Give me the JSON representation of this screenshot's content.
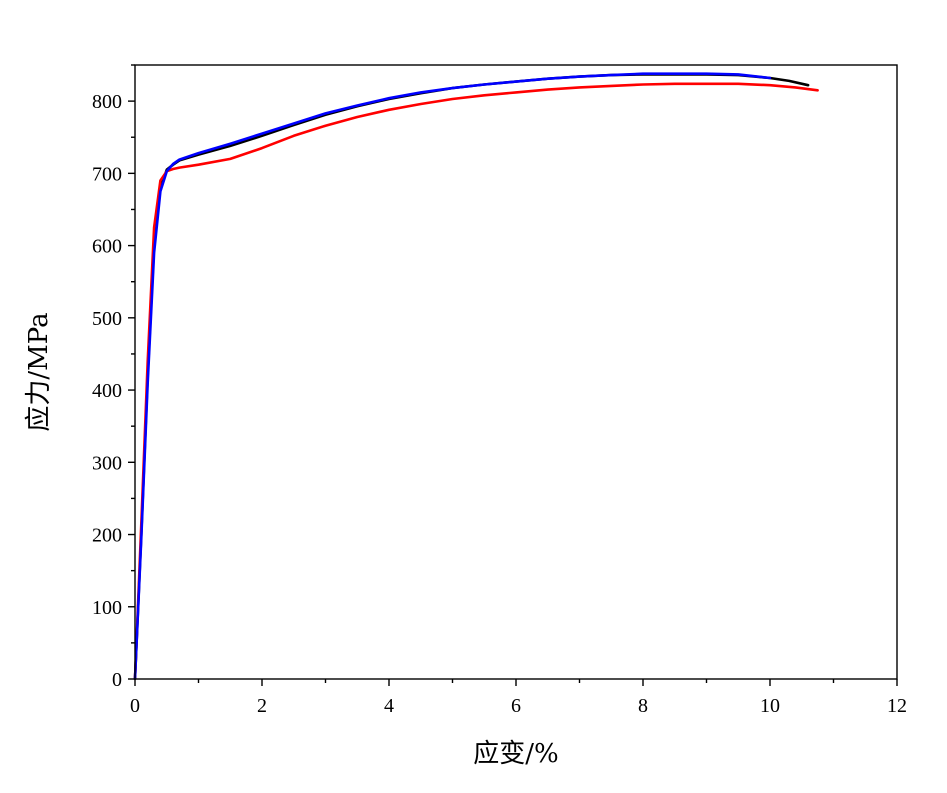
{
  "chart_data": {
    "type": "line",
    "title": "",
    "xlabel": "应变/%",
    "ylabel": "应力/MPa",
    "xlim": [
      0,
      12
    ],
    "ylim": [
      0,
      850
    ],
    "xticks": [
      0,
      2,
      4,
      6,
      8,
      10,
      12
    ],
    "yticks": [
      0,
      100,
      200,
      300,
      400,
      500,
      600,
      700,
      800
    ],
    "grid": false,
    "legend": "none",
    "series": [
      {
        "color": "#000000",
        "x": [
          0,
          0.1,
          0.2,
          0.3,
          0.4,
          0.5,
          0.6,
          0.7,
          1.0,
          1.5,
          2.0,
          2.5,
          3.0,
          3.5,
          4.0,
          4.5,
          5.0,
          5.5,
          6.0,
          6.5,
          7.0,
          7.5,
          8.0,
          8.5,
          9.0,
          9.5,
          10.0,
          10.3,
          10.6
        ],
        "y": [
          0,
          200,
          420,
          600,
          680,
          705,
          712,
          718,
          726,
          738,
          752,
          767,
          781,
          793,
          803,
          811,
          818,
          823,
          827,
          831,
          834,
          836,
          837,
          837,
          837,
          836,
          832,
          828,
          822
        ]
      },
      {
        "color": "#ff0000",
        "x": [
          0,
          0.1,
          0.2,
          0.3,
          0.4,
          0.5,
          0.6,
          0.7,
          1.0,
          1.5,
          2.0,
          2.5,
          3.0,
          3.5,
          4.0,
          4.5,
          5.0,
          5.5,
          6.0,
          6.5,
          7.0,
          7.5,
          8.0,
          8.5,
          9.0,
          9.5,
          10.0,
          10.4,
          10.75
        ],
        "y": [
          0,
          215,
          440,
          625,
          690,
          703,
          706,
          708,
          712,
          720,
          735,
          752,
          766,
          778,
          788,
          796,
          803,
          808,
          812,
          816,
          819,
          821,
          823,
          824,
          824,
          824,
          822,
          819,
          815
        ]
      },
      {
        "color": "#0000ff",
        "x": [
          0,
          0.1,
          0.2,
          0.3,
          0.4,
          0.5,
          0.6,
          0.7,
          1.0,
          1.5,
          2.0,
          2.5,
          3.0,
          3.5,
          4.0,
          4.5,
          5.0,
          5.5,
          6.0,
          6.5,
          7.0,
          7.5,
          8.0,
          8.5,
          9.0,
          9.5,
          10.0
        ],
        "y": [
          0,
          195,
          410,
          590,
          675,
          703,
          713,
          719,
          728,
          741,
          755,
          769,
          783,
          794,
          804,
          812,
          818,
          823,
          827,
          831,
          834,
          836,
          838,
          838,
          838,
          837,
          832
        ]
      }
    ]
  }
}
